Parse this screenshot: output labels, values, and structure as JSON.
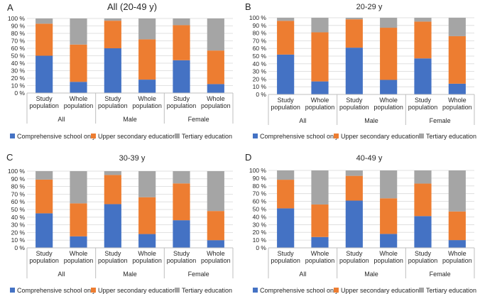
{
  "legend_labels": [
    "Comprehensive school only",
    "Upper secondary education",
    "Tertiary education"
  ],
  "colors": {
    "comprehensive": "#4472C4",
    "upper": "#ED7D31",
    "tertiary": "#A5A5A5"
  },
  "chart_data": [
    {
      "panel_letter": "A",
      "type": "bar",
      "stacked": true,
      "title": "All (20-49 y)",
      "categories": [
        "Study population",
        "Whole population",
        "Study population",
        "Whole population",
        "Study population",
        "Whole population"
      ],
      "groups": [
        "All",
        "Male",
        "Female"
      ],
      "yticks": [
        "0 %",
        "10 %",
        "20 %",
        "30 %",
        "40 %",
        "50 %",
        "60 %",
        "70 %",
        "80 %",
        "90 %",
        "100 %"
      ],
      "ylim": [
        0,
        100
      ],
      "series": [
        {
          "name": "Comprehensive school only",
          "values": [
            50,
            15,
            60,
            18,
            44,
            12
          ]
        },
        {
          "name": "Upper secondary education",
          "values": [
            43,
            50,
            37,
            54,
            47,
            45
          ]
        },
        {
          "name": "Tertiary education",
          "values": [
            7,
            35,
            3,
            28,
            9,
            43
          ]
        }
      ]
    },
    {
      "panel_letter": "B",
      "type": "bar",
      "stacked": true,
      "title": "20-29 y",
      "categories": [
        "Study population",
        "Whole population",
        "Study population",
        "Whole population",
        "Study population",
        "Whole population"
      ],
      "groups": [
        "All",
        "Male",
        "Female"
      ],
      "yticks": [
        "0 %",
        "10 %",
        "20 %",
        "30 %",
        "40 %",
        "50 %",
        "60 %",
        "70 %",
        "80 %",
        "90 %",
        "100 %"
      ],
      "ylim": [
        0,
        100
      ],
      "series": [
        {
          "name": "Comprehensive school only",
          "values": [
            52,
            17,
            61,
            19,
            47,
            14
          ]
        },
        {
          "name": "Upper secondary education",
          "values": [
            44,
            64,
            37,
            68,
            48,
            62
          ]
        },
        {
          "name": "Tertiary education",
          "values": [
            4,
            19,
            2,
            13,
            5,
            24
          ]
        }
      ]
    },
    {
      "panel_letter": "C",
      "type": "bar",
      "stacked": true,
      "title": "30-39 y",
      "categories": [
        "Study population",
        "Whole population",
        "Study population",
        "Whole population",
        "Study population",
        "Whole population"
      ],
      "groups": [
        "All",
        "Male",
        "Female"
      ],
      "yticks": [
        "0 %",
        "10 %",
        "20 %",
        "30 %",
        "40 %",
        "50 %",
        "60 %",
        "70 %",
        "80 %",
        "90 %",
        "100 %"
      ],
      "ylim": [
        0,
        100
      ],
      "series": [
        {
          "name": "Comprehensive school only",
          "values": [
            45,
            15,
            57,
            18,
            36,
            10
          ]
        },
        {
          "name": "Upper secondary education",
          "values": [
            44,
            43,
            38,
            48,
            48,
            38
          ]
        },
        {
          "name": "Tertiary education",
          "values": [
            11,
            42,
            5,
            34,
            16,
            52
          ]
        }
      ]
    },
    {
      "panel_letter": "D",
      "type": "bar",
      "stacked": true,
      "title": "40-49 y",
      "categories": [
        "Study population",
        "Whole population",
        "Study population",
        "Whole population",
        "Study population",
        "Whole population"
      ],
      "groups": [
        "All",
        "Male",
        "Female"
      ],
      "yticks": [
        "0 %",
        "10 %",
        "20 %",
        "30 %",
        "40 %",
        "50 %",
        "60 %",
        "70 %",
        "80 %",
        "90 %",
        "100 %"
      ],
      "ylim": [
        0,
        100
      ],
      "series": [
        {
          "name": "Comprehensive school only",
          "values": [
            51,
            14,
            61,
            18,
            41,
            10
          ]
        },
        {
          "name": "Upper secondary education",
          "values": [
            37,
            42,
            32,
            46,
            42,
            37
          ]
        },
        {
          "name": "Tertiary education",
          "values": [
            12,
            44,
            7,
            36,
            17,
            53
          ]
        }
      ]
    }
  ]
}
